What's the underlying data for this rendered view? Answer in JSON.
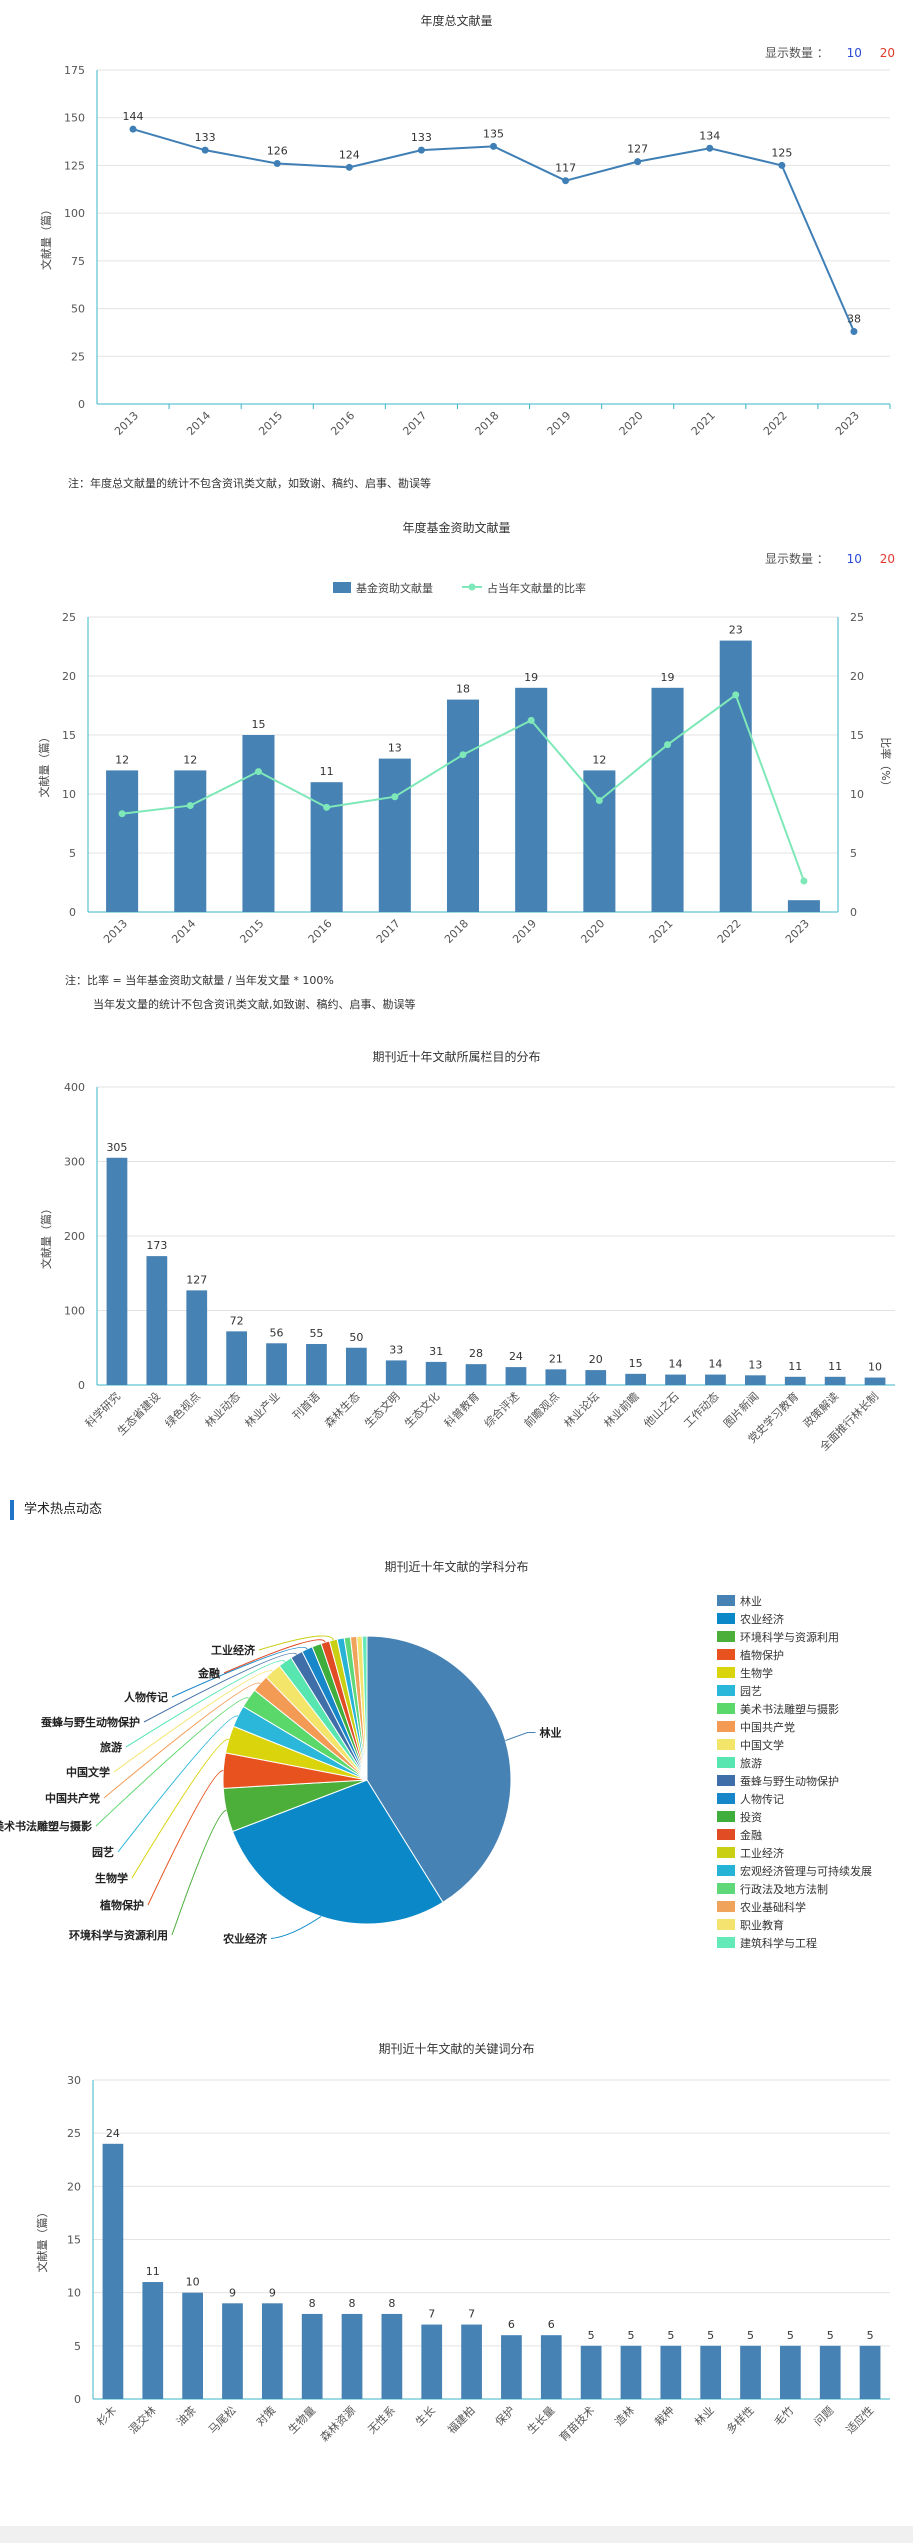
{
  "charts": {
    "annual": {
      "title": "年度总文献量",
      "count_label": "显示数量 ：",
      "count_options": [
        "10",
        "20"
      ],
      "note": "注：年度总文献量的统计不包含资讯类文献，如致谢、稿约、启事、勘误等"
    },
    "fund": {
      "title": "年度基金资助文献量",
      "count_label": "显示数量 ：",
      "count_options": [
        "10",
        "20"
      ],
      "note_line1": "注：比率 = 当年基金资助文献量 / 当年发文量 * 100%",
      "note_line2": "当年发文量的统计不包含资讯类文献,如致谢、稿约、启事、勘误等"
    },
    "columns": {
      "title": "期刊近十年文献所属栏目的分布"
    },
    "hot_section": {
      "label": "学术热点动态"
    },
    "subjects": {
      "title": "期刊近十年文献的学科分布"
    },
    "keywords": {
      "title": "期刊近十年文献的关键词分布"
    }
  },
  "colors": {
    "line_blue": "#3f7fb6",
    "bar_blue": "#4682b4",
    "ratio_green": "#7ee8b8",
    "axis_cyan": "#39b5c9",
    "count_10": "#2a4bd7",
    "count_20": "#e03a2e",
    "hot_accent": "#1f74c8"
  },
  "chart_data": [
    {
      "type": "line",
      "title": "年度总文献量",
      "ylabel": "文献量（篇）",
      "x": [
        "2013",
        "2014",
        "2015",
        "2016",
        "2017",
        "2018",
        "2019",
        "2020",
        "2021",
        "2022",
        "2023"
      ],
      "values": [
        144,
        133,
        126,
        124,
        133,
        135,
        117,
        127,
        134,
        125,
        38
      ],
      "ylim": [
        0,
        175
      ],
      "yticks": [
        0,
        25,
        50,
        75,
        100,
        125,
        150,
        175
      ],
      "grid": true
    },
    {
      "type": "bar",
      "title": "年度基金资助文献量",
      "ylabel": "文献量（篇）",
      "y2label": "比率（%）",
      "categories": [
        "2013",
        "2014",
        "2015",
        "2016",
        "2017",
        "2018",
        "2019",
        "2020",
        "2021",
        "2022",
        "2023"
      ],
      "series": [
        {
          "name": "基金资助文献量",
          "values": [
            12,
            12,
            15,
            11,
            13,
            18,
            19,
            12,
            19,
            23,
            1
          ]
        },
        {
          "name": "占当年文献量的比率",
          "values": [
            8.33,
            9.02,
            11.9,
            8.87,
            9.77,
            13.33,
            16.24,
            9.45,
            14.18,
            18.4,
            2.63
          ]
        }
      ],
      "ylim": [
        0,
        25
      ],
      "y2lim": [
        0,
        25
      ],
      "yticks": [
        0,
        5,
        10,
        15,
        20,
        25
      ],
      "legend": "top-center",
      "grid": true
    },
    {
      "type": "bar",
      "title": "期刊近十年文献所属栏目的分布",
      "ylabel": "文献量（篇）",
      "categories": [
        "科学研究",
        "生态省建设",
        "绿色视点",
        "林业动态",
        "林业产业",
        "刊首语",
        "森林生态",
        "生态文明",
        "生态文化",
        "科普教育",
        "综合评述",
        "前瞻观点",
        "林业论坛",
        "林业前瞻",
        "他山之石",
        "工作动态",
        "图片新闻",
        "党史学习教育",
        "政策解读",
        "全面推行林长制"
      ],
      "values": [
        305,
        173,
        127,
        72,
        56,
        55,
        50,
        33,
        31,
        28,
        24,
        21,
        20,
        15,
        14,
        14,
        13,
        11,
        11,
        10
      ],
      "ylim": [
        0,
        400
      ],
      "yticks": [
        0,
        100,
        200,
        300,
        400
      ],
      "grid": true
    },
    {
      "type": "pie",
      "title": "期刊近十年文献的学科分布",
      "labels": [
        "林业",
        "农业经济",
        "环境科学与资源利用",
        "植物保护",
        "生物学",
        "园艺",
        "美术书法雕塑与摄影",
        "中国共产党",
        "中国文学",
        "旅游",
        "蚕蜂与野生动物保护",
        "人物传记",
        "投资",
        "金融",
        "工业经济",
        "宏观经济管理与可持续发展",
        "行政法及地方法制",
        "农业基础科学",
        "职业教育",
        "建筑科学与工程"
      ],
      "values": [
        470,
        320,
        56,
        45,
        35,
        28,
        25,
        22,
        22,
        18,
        16,
        14,
        12,
        11,
        10,
        9,
        8,
        8,
        7,
        6
      ],
      "colors": [
        "#4682b4",
        "#0b88c7",
        "#4caf3a",
        "#e8521e",
        "#d9d40b",
        "#2ab7d9",
        "#5ad86a",
        "#f39b55",
        "#f3e46a",
        "#57e6b0",
        "#3f6ea8",
        "#1787c9",
        "#3fae3d",
        "#e14c24",
        "#c9cf12",
        "#26b3d6",
        "#5fd87a",
        "#f0a35a",
        "#f5e36f",
        "#64e9b8"
      ],
      "visible_callouts": [
        "林业",
        "农业经济",
        "环境科学与资源利用",
        "植物保护",
        "生物学",
        "园艺",
        "美术书法雕塑与摄影",
        "中国共产党",
        "中国文学",
        "旅游",
        "蚕蜂与野生动物保护",
        "人物传记",
        "金融",
        "工业经济"
      ],
      "legend": "right"
    },
    {
      "type": "bar",
      "title": "期刊近十年文献的关键词分布",
      "ylabel": "文献量（篇）",
      "categories": [
        "杉木",
        "混交林",
        "油茶",
        "马尾松",
        "对策",
        "生物量",
        "森林资源",
        "无性系",
        "生长",
        "福建柏",
        "保护",
        "生长量",
        "育苗技术",
        "造林",
        "栽种",
        "林业",
        "多样性",
        "毛竹",
        "问题",
        "适应性"
      ],
      "values": [
        24,
        11,
        10,
        9,
        9,
        8,
        8,
        8,
        7,
        7,
        6,
        6,
        5,
        5,
        5,
        5,
        5,
        5,
        5,
        5
      ],
      "ylim": [
        0,
        30
      ],
      "yticks": [
        0,
        5,
        10,
        15,
        20,
        25,
        30
      ],
      "grid": true
    }
  ]
}
